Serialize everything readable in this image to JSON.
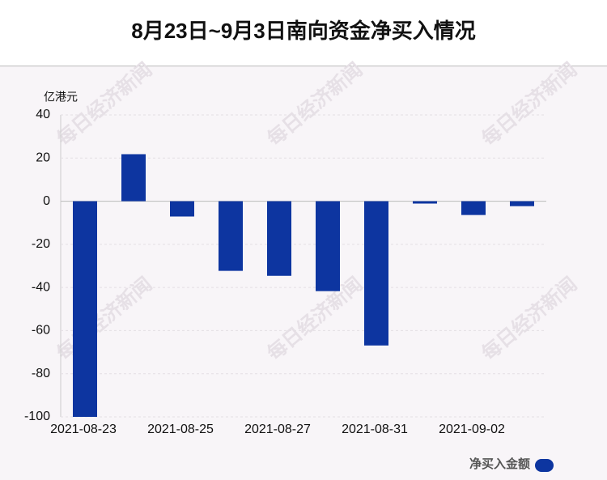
{
  "chart_data": {
    "type": "bar",
    "title": "8月23日~9月3日南向资金净买入情况",
    "y_label": "亿港元",
    "watermark": "每日经济新闻",
    "categories": [
      "2021-08-23",
      null,
      "2021-08-25",
      null,
      "2021-08-27",
      null,
      "2021-08-31",
      null,
      "2021-09-02",
      null
    ],
    "series": [
      {
        "name": "净买入金额",
        "color": "#0d35a0",
        "values": [
          -100,
          21.8,
          -7.1,
          -32.3,
          -34.6,
          -41.7,
          -66.9,
          -1.1,
          -6.4,
          -2.3
        ]
      }
    ],
    "ylim": [
      -100,
      40
    ],
    "yticks": [
      -100,
      -80,
      -60,
      -40,
      -20,
      0,
      20,
      40
    ],
    "grid": true,
    "legend": "bottom-right"
  }
}
